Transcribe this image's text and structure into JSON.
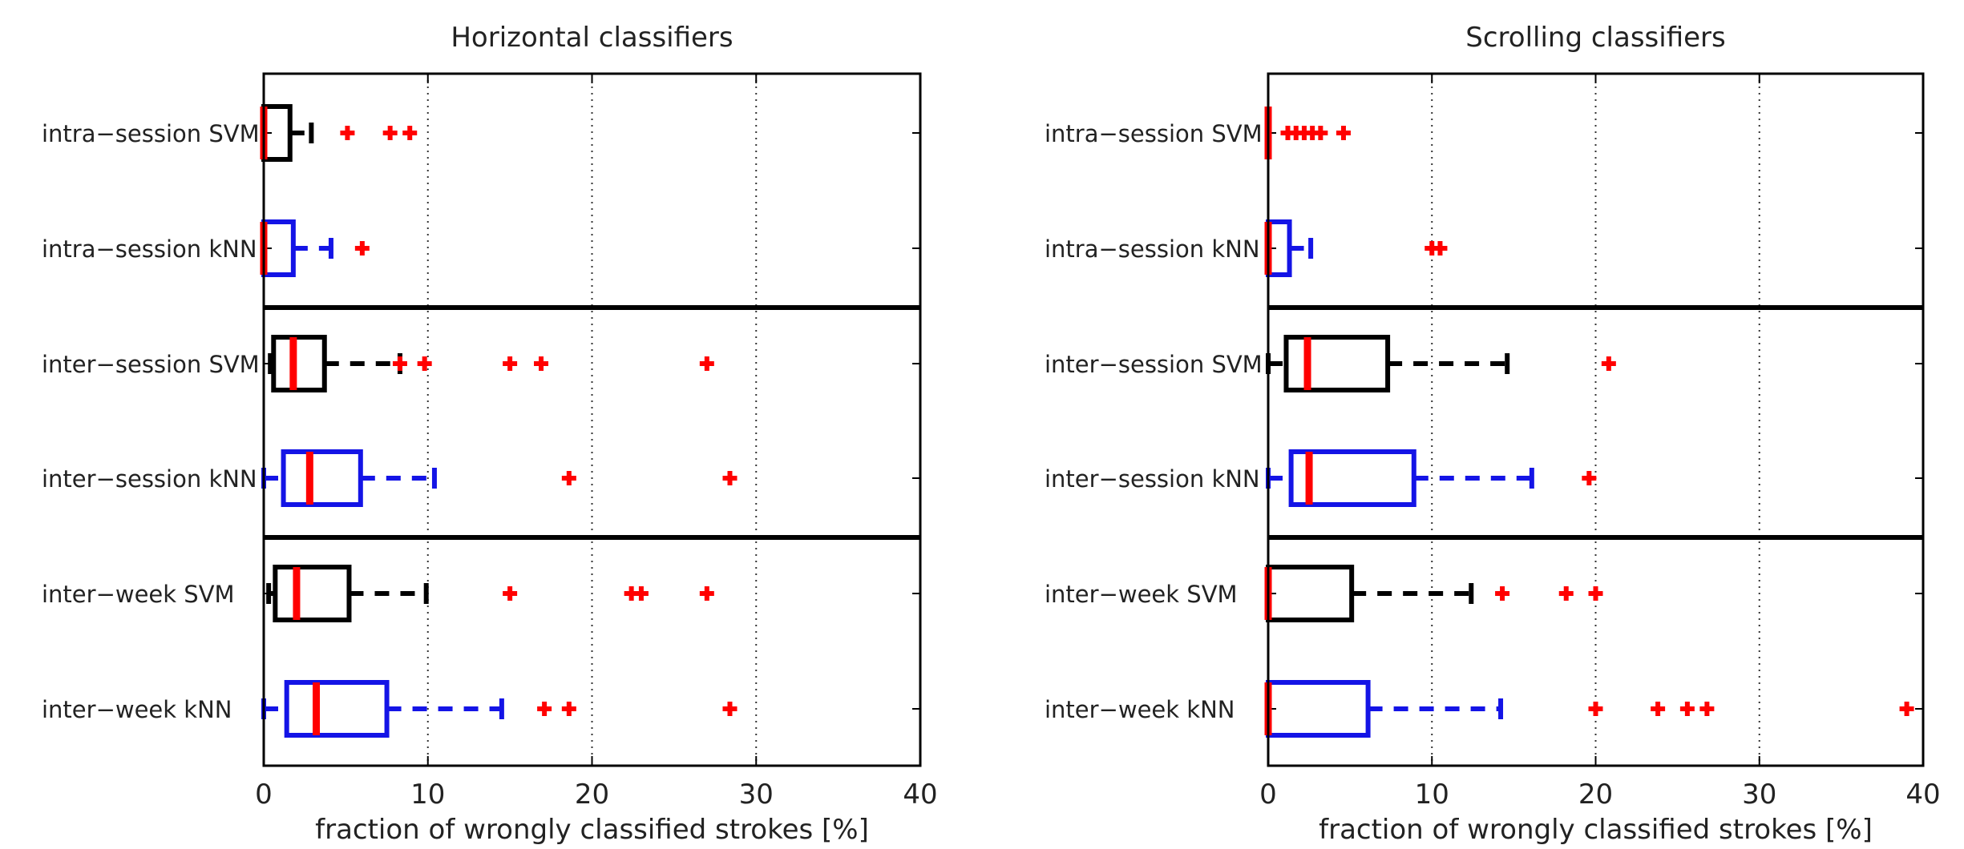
{
  "chart_data": [
    {
      "type": "boxplot",
      "title": "Horizontal classifiers",
      "xlabel": "fraction of wrongly classified strokes [%]",
      "xlim": [
        0,
        40
      ],
      "xticks": [
        "0",
        "10",
        "20",
        "30",
        "40"
      ],
      "grid": "vertical dotted",
      "orientation": "horizontal",
      "group_separators_after": [
        1,
        3
      ],
      "colors": {
        "svm": "#000000",
        "knn": "#1414e6",
        "median": "#ff0000",
        "outlier": "#ff0000"
      },
      "series": [
        {
          "label": "intra−session SVM",
          "color_key": "svm",
          "whisker_low": 0,
          "q1": 0,
          "median": 0,
          "q3": 1.6,
          "whisker_high": 2.9,
          "outliers": [
            5.1,
            7.7,
            8.9
          ]
        },
        {
          "label": "intra−session kNN",
          "color_key": "knn",
          "whisker_low": 0,
          "q1": 0,
          "median": 0,
          "q3": 1.8,
          "whisker_high": 4.1,
          "outliers": [
            6.0
          ]
        },
        {
          "label": "inter−session SVM",
          "color_key": "svm",
          "whisker_low": 0.4,
          "q1": 0.6,
          "median": 1.8,
          "q3": 3.7,
          "whisker_high": 8.3,
          "outliers": [
            8.3,
            9.8,
            15.0,
            16.9,
            27.0
          ]
        },
        {
          "label": "inter−session kNN",
          "color_key": "knn",
          "whisker_low": 0,
          "q1": 1.2,
          "median": 2.8,
          "q3": 5.9,
          "whisker_high": 10.4,
          "outliers": [
            18.6,
            28.4
          ]
        },
        {
          "label": "inter−week SVM",
          "color_key": "svm",
          "whisker_low": 0.3,
          "q1": 0.7,
          "median": 2.0,
          "q3": 5.2,
          "whisker_high": 9.9,
          "outliers": [
            15.0,
            22.4,
            23.0,
            27.0
          ]
        },
        {
          "label": "inter−week kNN",
          "color_key": "knn",
          "whisker_low": 0,
          "q1": 1.4,
          "median": 3.2,
          "q3": 7.5,
          "whisker_high": 14.5,
          "outliers": [
            17.1,
            18.6,
            28.4
          ]
        }
      ]
    },
    {
      "type": "boxplot",
      "title": "Scrolling classifiers",
      "xlabel": "fraction of wrongly classified strokes [%]",
      "xlim": [
        0,
        40
      ],
      "xticks": [
        "0",
        "10",
        "20",
        "30",
        "40"
      ],
      "grid": "vertical dotted",
      "orientation": "horizontal",
      "group_separators_after": [
        1,
        3
      ],
      "colors": {
        "svm": "#000000",
        "knn": "#1414e6",
        "median": "#ff0000",
        "outlier": "#ff0000"
      },
      "series": [
        {
          "label": "intra−session SVM",
          "color_key": "svm",
          "whisker_low": 0,
          "q1": 0,
          "median": 0,
          "q3": 0,
          "whisker_high": 0,
          "outliers": [
            1.2,
            1.7,
            2.2,
            2.7,
            3.2,
            4.6
          ]
        },
        {
          "label": "intra−session kNN",
          "color_key": "knn",
          "whisker_low": 0,
          "q1": 0,
          "median": 0,
          "q3": 1.3,
          "whisker_high": 2.6,
          "outliers": [
            10.0,
            10.5
          ]
        },
        {
          "label": "inter−session SVM",
          "color_key": "svm",
          "whisker_low": 0,
          "q1": 1.1,
          "median": 2.4,
          "q3": 7.3,
          "whisker_high": 14.6,
          "outliers": [
            20.8
          ]
        },
        {
          "label": "inter−session kNN",
          "color_key": "knn",
          "whisker_low": 0,
          "q1": 1.4,
          "median": 2.5,
          "q3": 8.9,
          "whisker_high": 16.1,
          "outliers": [
            19.6
          ]
        },
        {
          "label": "inter−week SVM",
          "color_key": "svm",
          "whisker_low": 0,
          "q1": 0,
          "median": 0,
          "q3": 5.1,
          "whisker_high": 12.4,
          "outliers": [
            14.3,
            18.2,
            20.0
          ]
        },
        {
          "label": "inter−week kNN",
          "color_key": "knn",
          "whisker_low": 0,
          "q1": 0,
          "median": 0,
          "q3": 6.1,
          "whisker_high": 14.2,
          "outliers": [
            20.0,
            23.8,
            25.6,
            26.8,
            39.0
          ]
        }
      ]
    }
  ]
}
